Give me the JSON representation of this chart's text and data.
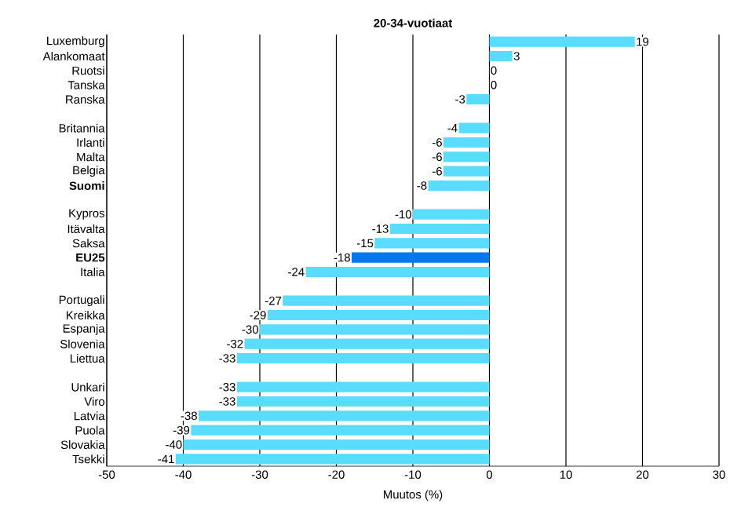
{
  "chart_data": {
    "type": "bar",
    "orientation": "horizontal",
    "title": "20-34-vuotiaat",
    "xlabel": "Muutos (%)",
    "categories": [
      "Luxemburg",
      "Alankomaat",
      "Ruotsi",
      "Tanska",
      "Ranska",
      null,
      "Britannia",
      "Irlanti",
      "Malta",
      "Belgia",
      "**Suomi**",
      null,
      "Kypros",
      "Itävalta",
      "Saksa",
      "**EU25**",
      "Italia",
      null,
      "Portugali",
      "Kreikka",
      "Espanja",
      "Slovenia",
      "Liettua",
      null,
      "Unkari",
      "Viro",
      "Latvia",
      "Puola",
      "Slovakia",
      "Tsekki"
    ],
    "values": [
      19,
      3,
      0,
      0,
      -3,
      null,
      -4,
      -6,
      -6,
      -6,
      -8,
      null,
      -10,
      -13,
      -15,
      -18,
      -24,
      null,
      -27,
      -29,
      -30,
      -32,
      -33,
      null,
      -33,
      -33,
      -38,
      -39,
      -40,
      -41
    ],
    "colors": [
      "#5adcff",
      "#5adcff",
      "#5adcff",
      "#5adcff",
      "#5adcff",
      null,
      "#5adcff",
      "#5adcff",
      "#5adcff",
      "#5adcff",
      "#5adcff",
      null,
      "#5adcff",
      "#5adcff",
      "#5adcff",
      "#0078f0",
      "#5adcff",
      null,
      "#5adcff",
      "#5adcff",
      "#5adcff",
      "#5adcff",
      "#5adcff",
      null,
      "#5adcff",
      "#5adcff",
      "#5adcff",
      "#5adcff",
      "#5adcff",
      "#5adcff"
    ],
    "xlim": [
      -50,
      30
    ],
    "xticks": [
      -50,
      -40,
      -30,
      -20,
      -10,
      0,
      10,
      20,
      30
    ],
    "grid": "x",
    "data_labels": true
  }
}
